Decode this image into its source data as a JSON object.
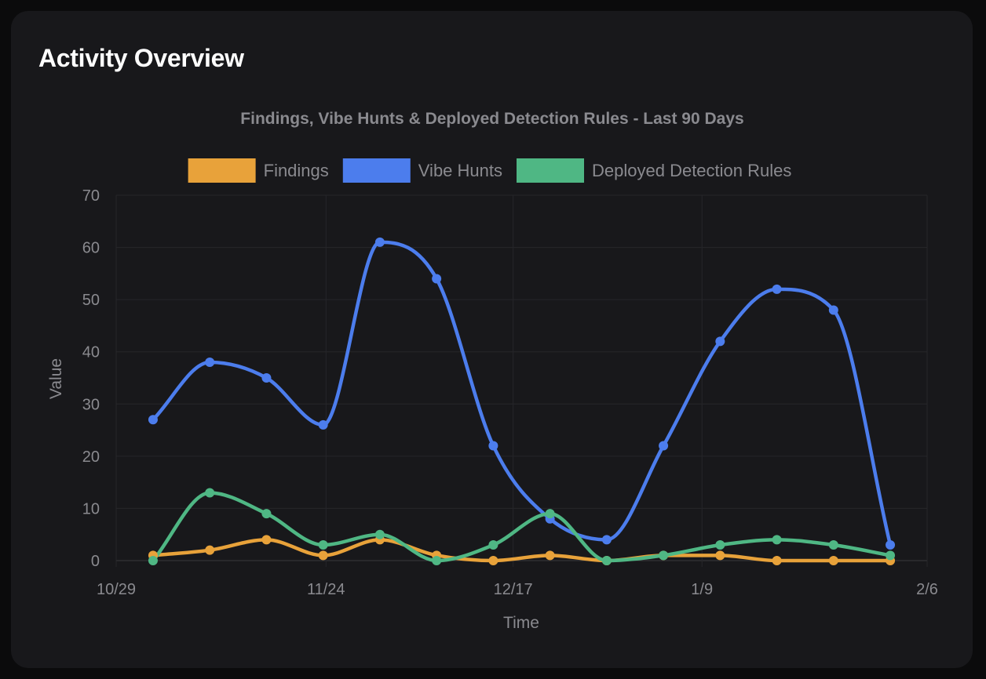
{
  "card": {
    "title": "Activity Overview"
  },
  "chart_data": {
    "type": "line",
    "title": "Findings, Vibe Hunts & Deployed Detection Rules - Last 90 Days",
    "xlabel": "Time",
    "ylabel": "Value",
    "ylim": [
      0,
      70
    ],
    "yticks": [
      0,
      10,
      20,
      30,
      40,
      50,
      60,
      70
    ],
    "x": [
      0,
      1,
      2,
      3,
      4,
      5,
      6,
      7,
      8,
      9,
      10,
      11,
      12,
      13
    ],
    "xlim": [
      -0.65,
      13.65
    ],
    "xticks": [
      {
        "label": "10/29",
        "pos": -0.65
      },
      {
        "label": "11/24",
        "pos": 3.05
      },
      {
        "label": "12/17",
        "pos": 6.35
      },
      {
        "label": "1/9",
        "pos": 9.68
      },
      {
        "label": "2/6",
        "pos": 13.65
      }
    ],
    "legend_position": "top",
    "grid": true,
    "series": [
      {
        "name": "Findings",
        "color": "#e8a23a",
        "values": [
          1,
          2,
          4,
          1,
          4,
          1,
          0,
          1,
          0,
          1,
          1,
          0,
          0,
          0
        ]
      },
      {
        "name": "Vibe Hunts",
        "color": "#4c7ded",
        "values": [
          27,
          38,
          35,
          26,
          61,
          54,
          22,
          8,
          4,
          22,
          42,
          52,
          48,
          3
        ]
      },
      {
        "name": "Deployed Detection Rules",
        "color": "#4fb784",
        "values": [
          0,
          13,
          9,
          3,
          5,
          0,
          3,
          9,
          0,
          1,
          3,
          4,
          3,
          1
        ]
      }
    ]
  }
}
